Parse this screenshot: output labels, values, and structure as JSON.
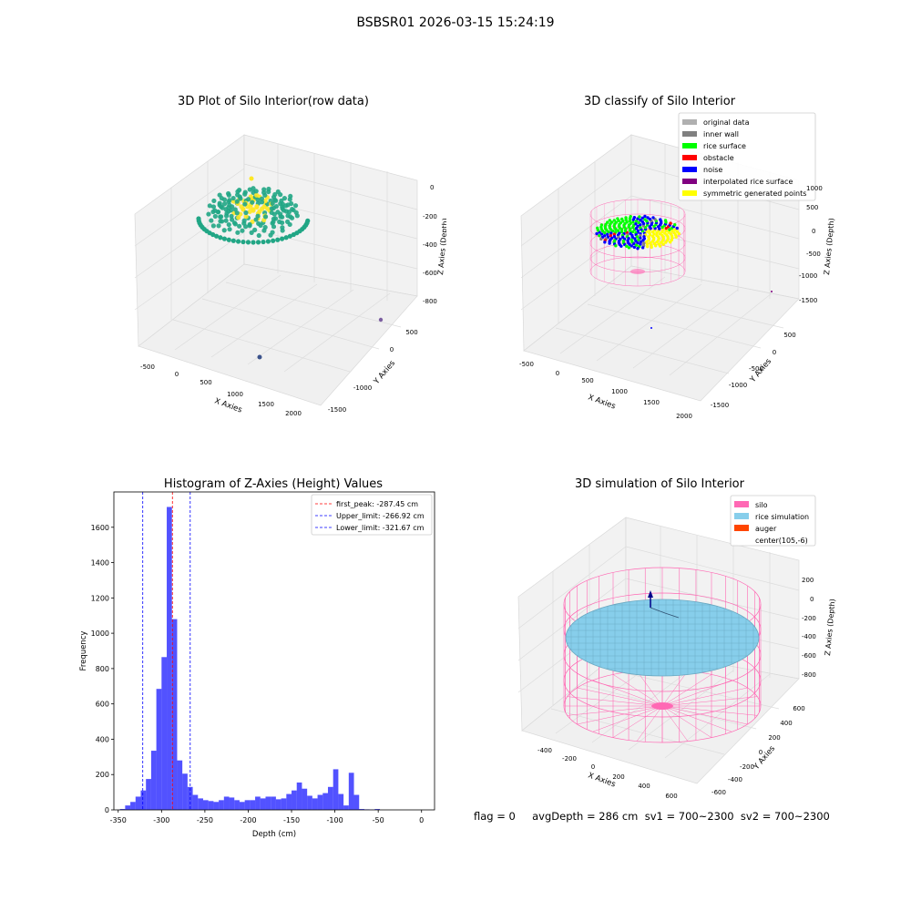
{
  "figure": {
    "suptitle": "BSBSR01 2026-03-15 15:24:19",
    "footer": "flag = 0     avgDepth = 286 cm  sv1 = 700~2300  sv2 = 700~2300"
  },
  "panels": {
    "raw": {
      "title": "3D Plot of Silo Interior(row data)",
      "xlabel": "X Axies",
      "ylabel": "Y Axies",
      "zlabel": "Z Axies (Depth)",
      "xticks": [
        "-500",
        "0",
        "500",
        "1000",
        "1500",
        "2000"
      ],
      "yticks": [
        "500",
        "0",
        "-1000",
        "-1500"
      ],
      "zticks": [
        "0",
        "-200",
        "-400",
        "-600",
        "-800"
      ],
      "colors": {
        "low": "#21a685",
        "high": "#fde725",
        "outlier": "#3b528b"
      }
    },
    "classify": {
      "title": "3D classify of Silo Interior",
      "xlabel": "X Axies",
      "ylabel": "Y Axies",
      "zlabel": "Z Axies (Depth)",
      "xticks": [
        "-500",
        "0",
        "500",
        "1000",
        "1500",
        "2000"
      ],
      "yticks": [
        "500",
        "0",
        "-500",
        "-1000",
        "-1500"
      ],
      "zticks": [
        "1000",
        "500",
        "0",
        "-500",
        "-1000",
        "-1500"
      ],
      "legend": [
        {
          "label": "original data",
          "color": "#b0b0b0"
        },
        {
          "label": "inner wall",
          "color": "#808080"
        },
        {
          "label": "rice surface",
          "color": "#00ff00"
        },
        {
          "label": "obstacle",
          "color": "#ff0000"
        },
        {
          "label": "noise",
          "color": "#0000ff"
        },
        {
          "label": "interpolated rice surface",
          "color": "#800080"
        },
        {
          "label": "symmetric generated points",
          "color": "#ffff00"
        }
      ],
      "wall_color": "#ff69b4"
    },
    "simulation": {
      "title": "3D simulation of Silo Interior",
      "xlabel": "X Axies",
      "ylabel": "Y Axies",
      "zlabel": "Z Axies (Depth)",
      "xticks": [
        "-400",
        "-200",
        "0",
        "200",
        "400",
        "600"
      ],
      "yticks": [
        "600",
        "400",
        "200",
        "0",
        "-200",
        "-400",
        "-600"
      ],
      "zticks": [
        "200",
        "0",
        "-200",
        "-400",
        "-600",
        "-800"
      ],
      "legend": [
        {
          "label": "silo",
          "color": "#ff69b4"
        },
        {
          "label": "rice simulation",
          "color": "#87ceeb"
        },
        {
          "label": "auger",
          "color": "#ff4500"
        },
        {
          "label": "center(105,-6)",
          "color": "none"
        }
      ]
    }
  },
  "chart_data": {
    "type": "bar",
    "title": "Histogram of Z-Axies (Height) Values",
    "xlabel": "Depth (cm)",
    "ylabel": "Frequency",
    "xlim": [
      -355,
      15
    ],
    "ylim": [
      0,
      1800
    ],
    "xticks": [
      -350,
      -300,
      -250,
      -200,
      -150,
      -100,
      -50,
      0
    ],
    "yticks": [
      0,
      200,
      400,
      600,
      800,
      1000,
      1200,
      1400,
      1600
    ],
    "bar_color": "#0000ff",
    "bins": [
      {
        "start": -348,
        "end": -342,
        "count": 5
      },
      {
        "start": -342,
        "end": -336,
        "count": 25
      },
      {
        "start": -336,
        "end": -330,
        "count": 45
      },
      {
        "start": -330,
        "end": -324,
        "count": 75
      },
      {
        "start": -324,
        "end": -318,
        "count": 110
      },
      {
        "start": -318,
        "end": -312,
        "count": 175
      },
      {
        "start": -312,
        "end": -306,
        "count": 335
      },
      {
        "start": -306,
        "end": -300,
        "count": 685
      },
      {
        "start": -300,
        "end": -294,
        "count": 865
      },
      {
        "start": -294,
        "end": -288,
        "count": 1715
      },
      {
        "start": -288,
        "end": -282,
        "count": 1080
      },
      {
        "start": -282,
        "end": -276,
        "count": 280
      },
      {
        "start": -276,
        "end": -270,
        "count": 205
      },
      {
        "start": -270,
        "end": -264,
        "count": 130
      },
      {
        "start": -264,
        "end": -258,
        "count": 85
      },
      {
        "start": -258,
        "end": -252,
        "count": 65
      },
      {
        "start": -252,
        "end": -246,
        "count": 55
      },
      {
        "start": -246,
        "end": -240,
        "count": 50
      },
      {
        "start": -240,
        "end": -234,
        "count": 45
      },
      {
        "start": -234,
        "end": -228,
        "count": 55
      },
      {
        "start": -228,
        "end": -222,
        "count": 75
      },
      {
        "start": -222,
        "end": -216,
        "count": 70
      },
      {
        "start": -216,
        "end": -210,
        "count": 55
      },
      {
        "start": -210,
        "end": -204,
        "count": 45
      },
      {
        "start": -204,
        "end": -198,
        "count": 55
      },
      {
        "start": -198,
        "end": -192,
        "count": 55
      },
      {
        "start": -192,
        "end": -186,
        "count": 75
      },
      {
        "start": -186,
        "end": -180,
        "count": 65
      },
      {
        "start": -180,
        "end": -174,
        "count": 75
      },
      {
        "start": -174,
        "end": -168,
        "count": 75
      },
      {
        "start": -168,
        "end": -162,
        "count": 60
      },
      {
        "start": -162,
        "end": -156,
        "count": 65
      },
      {
        "start": -156,
        "end": -150,
        "count": 90
      },
      {
        "start": -150,
        "end": -144,
        "count": 110
      },
      {
        "start": -144,
        "end": -138,
        "count": 155
      },
      {
        "start": -138,
        "end": -132,
        "count": 120
      },
      {
        "start": -132,
        "end": -126,
        "count": 80
      },
      {
        "start": -126,
        "end": -120,
        "count": 65
      },
      {
        "start": -120,
        "end": -114,
        "count": 85
      },
      {
        "start": -114,
        "end": -108,
        "count": 95
      },
      {
        "start": -108,
        "end": -102,
        "count": 130
      },
      {
        "start": -102,
        "end": -96,
        "count": 230
      },
      {
        "start": -96,
        "end": -90,
        "count": 90
      },
      {
        "start": -90,
        "end": -84,
        "count": 25
      },
      {
        "start": -84,
        "end": -78,
        "count": 210
      },
      {
        "start": -78,
        "end": -72,
        "count": 85
      },
      {
        "start": -72,
        "end": -66,
        "count": 5
      },
      {
        "start": -66,
        "end": -60,
        "count": 3
      },
      {
        "start": -60,
        "end": -54,
        "count": 2
      },
      {
        "start": -54,
        "end": -48,
        "count": 5
      }
    ],
    "vlines": [
      {
        "label": "first_peak: -287.45 cm",
        "value": -287.45,
        "color": "#ff0000"
      },
      {
        "label": "Upper_limit: -266.92 cm",
        "value": -266.92,
        "color": "#0000ff"
      },
      {
        "label": "Lower_limit: -321.67 cm",
        "value": -321.67,
        "color": "#0000ff"
      }
    ],
    "legend_position": "top-right"
  }
}
